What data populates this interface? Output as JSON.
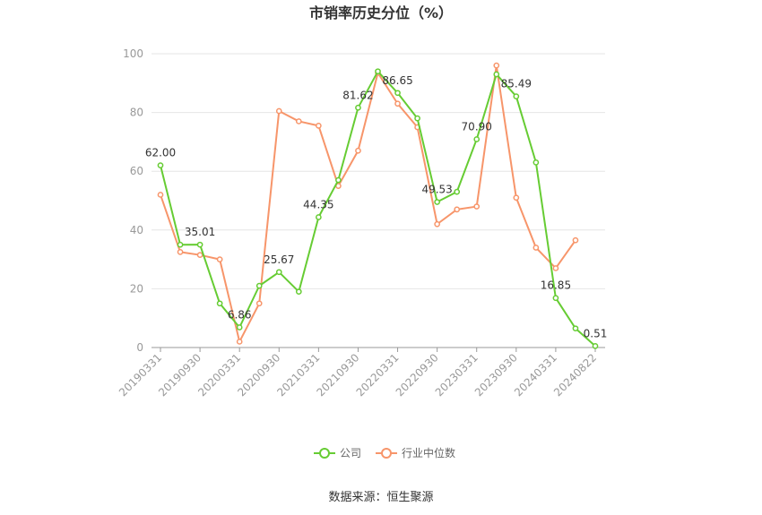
{
  "chart_data": {
    "type": "line",
    "title": "市销率历史分位（%）",
    "source": "数据来源：恒生聚源",
    "ylim": [
      0,
      100
    ],
    "y_ticks": [
      0,
      20,
      40,
      60,
      80,
      100
    ],
    "grid": true,
    "legend_position": "bottom",
    "x_tick_labels": [
      "20190331",
      "20190930",
      "20200331",
      "20200930",
      "20210331",
      "20210930",
      "20220331",
      "20220930",
      "20230331",
      "20230930",
      "20240331",
      "20240822"
    ],
    "x": [
      "20190331",
      "20190630",
      "20190930",
      "20191231",
      "20200331",
      "20200630",
      "20200930",
      "20201231",
      "20210331",
      "20210630",
      "20210930",
      "20211231",
      "20220331",
      "20220630",
      "20220930",
      "20221231",
      "20230331",
      "20230630",
      "20230930",
      "20231231",
      "20240331",
      "20240630",
      "20240822"
    ],
    "series": [
      {
        "name": "公司",
        "color": "#66cc33",
        "values": [
          62.0,
          35.0,
          35.01,
          15.0,
          6.86,
          21.0,
          25.67,
          19.0,
          44.35,
          57.0,
          81.62,
          94.0,
          86.65,
          78.0,
          49.53,
          53.0,
          70.9,
          93.0,
          85.49,
          63.0,
          16.85,
          6.5,
          0.51
        ],
        "labels": [
          "62.00",
          "",
          "35.01",
          "",
          "6.86",
          "",
          "25.67",
          "",
          "44.35",
          "",
          "81.62",
          "",
          "86.65",
          "",
          "49.53",
          "",
          "70.90",
          "",
          "85.49",
          "",
          "16.85",
          "",
          "0.51"
        ]
      },
      {
        "name": "行业中位数",
        "color": "#f7956a",
        "values": [
          52.0,
          32.5,
          31.5,
          30.0,
          2.0,
          15.0,
          80.5,
          77.0,
          75.5,
          55.0,
          67.0,
          93.5,
          83.0,
          75.0,
          42.0,
          47.0,
          48.0,
          96.0,
          51.0,
          34.0,
          27.0,
          36.5,
          null
        ]
      }
    ]
  }
}
